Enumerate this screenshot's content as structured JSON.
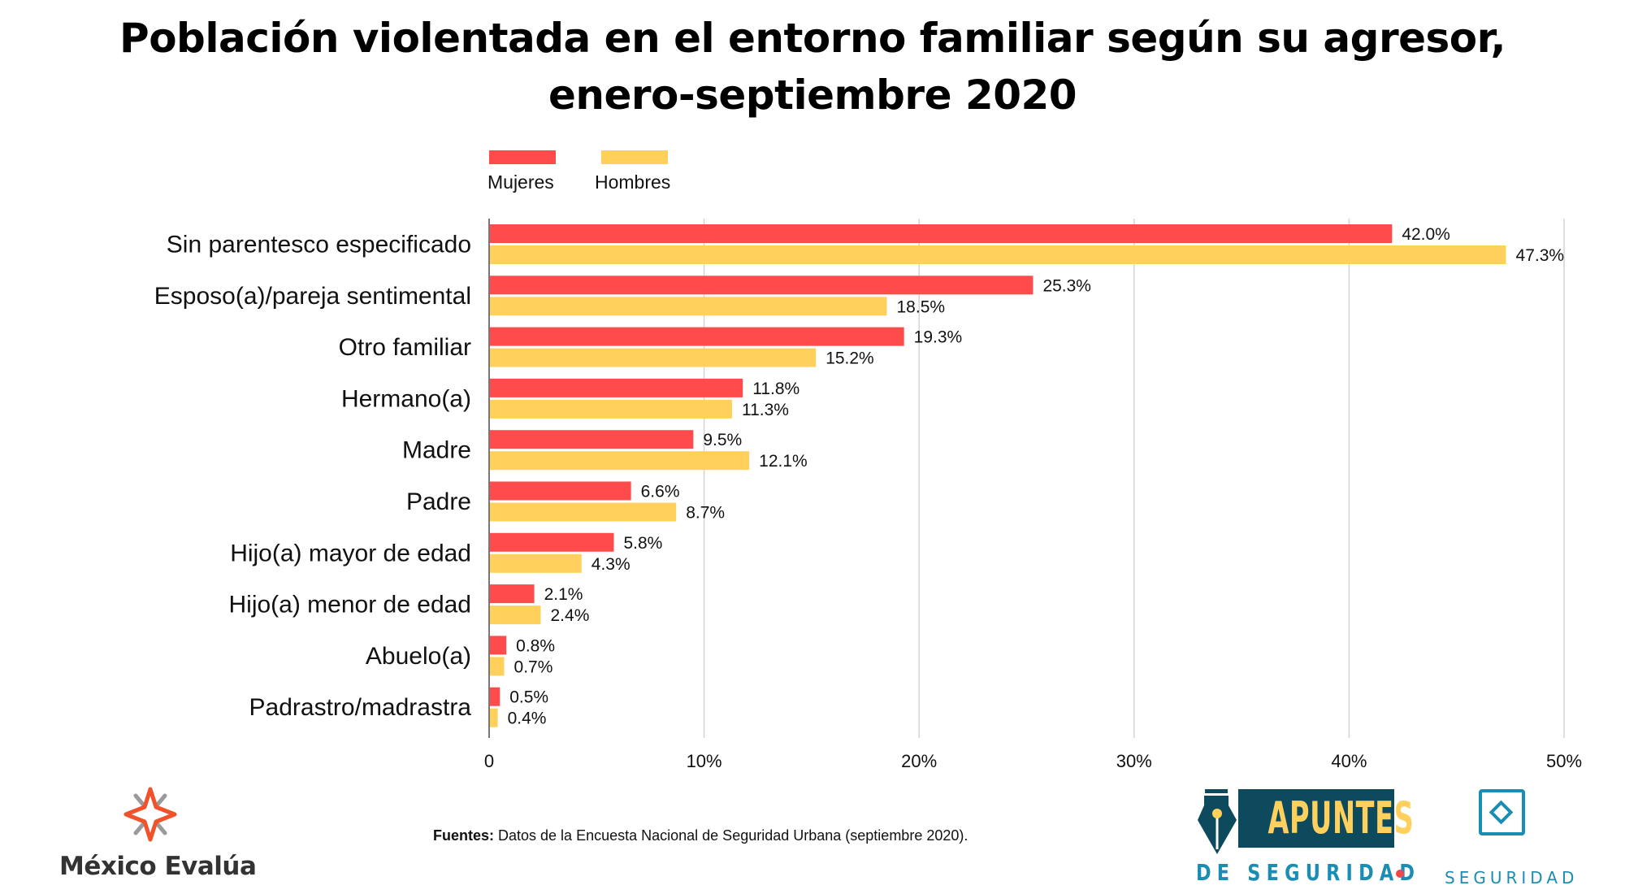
{
  "header": {
    "title_line1": "Población violentada en el entorno familiar según su agresor,",
    "title_line2": "enero-septiembre 2020"
  },
  "legend": [
    {
      "label": "Mujeres",
      "color": "#FF4B4B"
    },
    {
      "label": "Hombres",
      "color": "#FFD15C"
    }
  ],
  "chart_data": {
    "type": "bar",
    "orientation": "horizontal",
    "title": "Población violentada en el entorno familiar según su agresor, enero-septiembre 2020",
    "xlabel": "",
    "ylabel": "",
    "xlim": [
      0,
      50
    ],
    "x_ticks": [
      0,
      10,
      20,
      30,
      40,
      50
    ],
    "x_tick_labels": [
      "0",
      "10%",
      "20%",
      "30%",
      "40%",
      "50%"
    ],
    "grid": "vertical",
    "legend_position": "top-left",
    "categories": [
      "Sin parentesco especificado",
      "Esposo(a)/pareja sentimental",
      "Otro familiar",
      "Hermano(a)",
      "Madre",
      "Padre",
      "Hijo(a) mayor de edad",
      "Hijo(a) menor de edad",
      "Abuelo(a)",
      "Padrastro/madrastra"
    ],
    "series": [
      {
        "name": "Mujeres",
        "color": "#FF4B4B",
        "values": [
          42.0,
          25.3,
          19.3,
          11.8,
          9.5,
          6.6,
          5.8,
          2.1,
          0.8,
          0.5
        ],
        "labels": [
          "42.0%",
          "25.3%",
          "19.3%",
          "11.8%",
          "9.5%",
          "6.6%",
          "5.8%",
          "2.1%",
          "0.8%",
          "0.5%"
        ]
      },
      {
        "name": "Hombres",
        "color": "#FFD15C",
        "values": [
          47.3,
          18.5,
          15.2,
          11.3,
          12.1,
          8.7,
          4.3,
          2.4,
          0.7,
          0.4
        ],
        "labels": [
          "47.3%",
          "18.5%",
          "15.2%",
          "11.3%",
          "12.1%",
          "8.7%",
          "4.3%",
          "2.4%",
          "0.7%",
          "0.4%"
        ]
      }
    ]
  },
  "footer": {
    "source_bold": "Fuentes:",
    "source_text": " Datos de la Encuesta Nacional de Seguridad Urbana (septiembre 2020).",
    "logo_mexico_evalua": "México Evalúa",
    "logo_apuntes_word": "APUNTES",
    "logo_apuntes_sub": "DE SEGURIDAD",
    "logo_seguridad": "SEGURIDAD",
    "colors": {
      "evalua_orange": "#F0522B",
      "apuntes_navy": "#0E4A5E",
      "seguridad_teal": "#1A8DB3"
    }
  }
}
